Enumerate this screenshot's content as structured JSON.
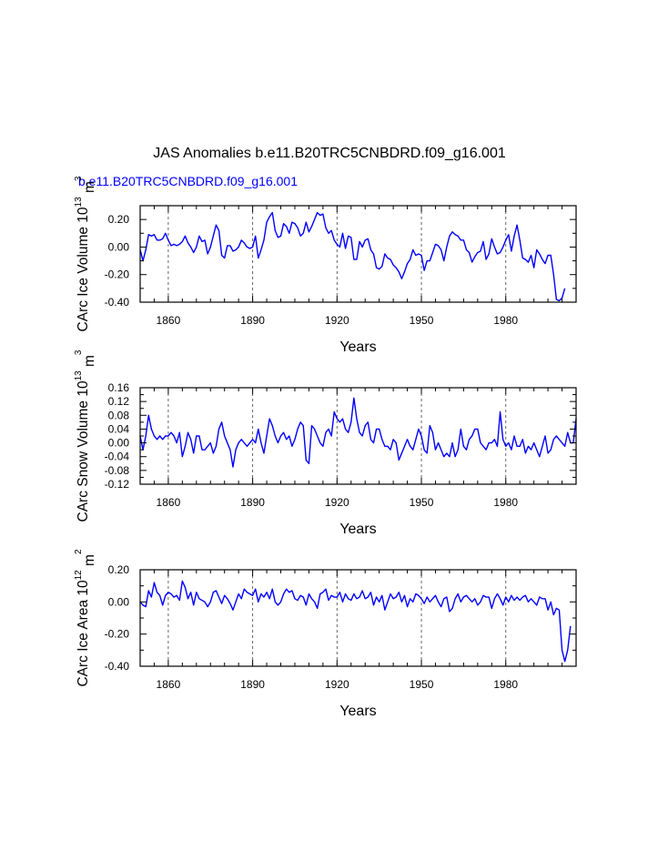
{
  "title": "JAS Anomalies b.e11.B20TRC5CNBDRD.f09_g16.001",
  "legend_label": "b.e11.B20TRC5CNBDRD.f09_g16.001",
  "colors": {
    "series": "#0000ff",
    "axis": "#000000",
    "grid": "#555555",
    "legend": "#0000ff"
  },
  "chart_data": [
    {
      "type": "line",
      "title": "",
      "xlabel": "Years",
      "ylabel": "CArc Ice Volume 10",
      "ylabel_exp1": "13",
      "ylabel_mid": " m",
      "ylabel_exp2": "3",
      "xlim": [
        1850,
        2005
      ],
      "ylim": [
        -0.4,
        0.3
      ],
      "xticks": [
        1860,
        1890,
        1920,
        1950,
        1980
      ],
      "yticks": [
        -0.4,
        -0.2,
        0.0,
        0.2
      ],
      "ytick_labels": [
        "-0.40",
        "-0.20",
        "0.00",
        "0.20"
      ],
      "grid_x": [
        1860,
        1890,
        1920,
        1950,
        1980
      ],
      "x_start": 1850,
      "series": [
        {
          "name": "b.e11.B20TRC5CNBDRD.f09_g16.001",
          "values": [
            -0.02,
            -0.1,
            -0.02,
            0.09,
            0.08,
            0.09,
            0.05,
            0.05,
            0.06,
            0.1,
            0.05,
            0.01,
            0.02,
            0.01,
            0.02,
            0.04,
            0.08,
            0.03,
            0.0,
            -0.04,
            0.0,
            0.08,
            0.04,
            0.05,
            -0.05,
            0.0,
            0.08,
            0.16,
            0.12,
            -0.06,
            -0.08,
            0.01,
            0.01,
            -0.03,
            -0.02,
            0.0,
            0.05,
            0.03,
            0.0,
            -0.01,
            0.0,
            0.08,
            -0.08,
            -0.02,
            0.05,
            0.18,
            0.22,
            0.25,
            0.12,
            0.07,
            0.08,
            0.17,
            0.15,
            0.1,
            0.18,
            0.17,
            0.14,
            0.08,
            0.1,
            0.18,
            0.11,
            0.15,
            0.2,
            0.25,
            0.23,
            0.24,
            0.14,
            0.1,
            0.12,
            0.05,
            0.02,
            0.0,
            0.1,
            -0.01,
            0.08,
            0.07,
            -0.09,
            -0.09,
            0.04,
            0.0,
            0.05,
            0.06,
            -0.02,
            -0.05,
            -0.15,
            -0.16,
            -0.14,
            -0.05,
            -0.08,
            -0.09,
            -0.13,
            -0.15,
            -0.18,
            -0.23,
            -0.18,
            -0.12,
            -0.09,
            -0.02,
            -0.06,
            -0.05,
            -0.06,
            -0.17,
            -0.1,
            -0.1,
            -0.04,
            0.02,
            0.01,
            -0.02,
            -0.1,
            0.0,
            0.08,
            0.11,
            0.09,
            0.08,
            0.05,
            0.05,
            -0.02,
            -0.04,
            -0.11,
            -0.07,
            -0.04,
            -0.03,
            0.04,
            -0.09,
            -0.05,
            0.06,
            0.0,
            -0.05,
            -0.04,
            0.0,
            0.05,
            0.09,
            -0.03,
            0.08,
            0.16,
            0.05,
            -0.08,
            -0.09,
            -0.11,
            -0.06,
            -0.15,
            -0.02,
            -0.05,
            -0.09,
            -0.12,
            -0.06,
            -0.06,
            -0.2,
            -0.38,
            -0.39,
            -0.37,
            -0.3
          ]
        }
      ]
    },
    {
      "type": "line",
      "title": "",
      "xlabel": "Years",
      "ylabel": "CArc Snow Volume 10",
      "ylabel_exp1": "13",
      "ylabel_mid": " m",
      "ylabel_exp2": "3",
      "xlim": [
        1850,
        2005
      ],
      "ylim": [
        -0.12,
        0.16
      ],
      "xticks": [
        1860,
        1890,
        1920,
        1950,
        1980
      ],
      "yticks": [
        -0.12,
        -0.08,
        -0.04,
        0.0,
        0.04,
        0.08,
        0.12,
        0.16
      ],
      "ytick_labels": [
        "-0.12",
        "-0.08",
        "-0.04",
        "0.00",
        "0.04",
        "0.08",
        "0.12",
        "0.16"
      ],
      "grid_x": [
        1860,
        1890,
        1920,
        1950,
        1980
      ],
      "x_start": 1850,
      "series": [
        {
          "name": "b.e11.B20TRC5CNBDRD.f09_g16.001",
          "values": [
            0.02,
            -0.02,
            0.02,
            0.08,
            0.04,
            0.02,
            0.01,
            0.02,
            0.01,
            0.02,
            0.02,
            0.03,
            0.02,
            0.0,
            0.03,
            -0.04,
            -0.01,
            0.03,
            0.01,
            -0.03,
            0.02,
            0.02,
            -0.02,
            -0.02,
            -0.01,
            0.0,
            -0.03,
            -0.01,
            0.04,
            0.06,
            0.02,
            0.0,
            -0.02,
            -0.07,
            -0.02,
            0.0,
            0.01,
            0.0,
            -0.01,
            0.0,
            0.01,
            0.0,
            0.04,
            0.0,
            -0.03,
            0.02,
            0.07,
            0.05,
            0.02,
            0.0,
            0.02,
            0.03,
            0.01,
            0.02,
            -0.01,
            0.01,
            0.04,
            0.06,
            0.05,
            -0.05,
            -0.06,
            0.05,
            0.04,
            0.02,
            0.0,
            -0.01,
            0.03,
            0.04,
            0.02,
            0.09,
            0.07,
            0.06,
            0.07,
            0.04,
            0.03,
            0.06,
            0.13,
            0.07,
            0.03,
            0.02,
            0.05,
            0.06,
            0.01,
            0.0,
            0.04,
            0.04,
            0.01,
            -0.01,
            -0.01,
            -0.02,
            0.01,
            0.0,
            -0.05,
            -0.03,
            -0.01,
            0.01,
            -0.01,
            -0.02,
            0.01,
            0.04,
            0.02,
            -0.02,
            -0.03,
            0.05,
            0.03,
            -0.02,
            0.0,
            -0.02,
            -0.04,
            -0.03,
            -0.04,
            0.0,
            -0.04,
            -0.02,
            0.04,
            -0.01,
            -0.02,
            0.01,
            0.02,
            0.04,
            0.04,
            0.0,
            -0.01,
            -0.02,
            0.0,
            0.0,
            0.01,
            -0.01,
            0.09,
            0.01,
            -0.01,
            0.0,
            -0.02,
            0.02,
            -0.01,
            -0.01,
            0.01,
            -0.03,
            -0.01,
            -0.02,
            0.0,
            -0.02,
            -0.04,
            -0.01,
            0.02,
            -0.03,
            -0.02,
            0.01,
            0.02,
            0.01,
            0.0,
            -0.01,
            0.03,
            0.0,
            0.0,
            0.07
          ]
        }
      ]
    },
    {
      "type": "line",
      "title": "",
      "xlabel": "Years",
      "ylabel": "CArc Ice Area 10",
      "ylabel_exp1": "12",
      "ylabel_mid": " m",
      "ylabel_exp2": "2",
      "xlim": [
        1850,
        2005
      ],
      "ylim": [
        -0.4,
        0.2
      ],
      "xticks": [
        1860,
        1890,
        1920,
        1950,
        1980
      ],
      "yticks": [
        -0.4,
        -0.2,
        0.0,
        0.2
      ],
      "ytick_labels": [
        "-0.40",
        "-0.20",
        "0.00",
        "0.20"
      ],
      "grid_x": [
        1860,
        1890,
        1920,
        1950,
        1980
      ],
      "x_start": 1850,
      "series": [
        {
          "name": "b.e11.B20TRC5CNBDRD.f09_g16.001",
          "values": [
            0.0,
            -0.02,
            -0.03,
            0.07,
            0.03,
            0.12,
            0.06,
            0.04,
            -0.02,
            0.04,
            0.06,
            0.05,
            0.03,
            0.04,
            0.01,
            0.13,
            0.09,
            0.02,
            0.06,
            -0.02,
            0.06,
            0.02,
            0.01,
            0.0,
            -0.03,
            0.0,
            0.06,
            0.07,
            0.03,
            -0.01,
            0.04,
            0.02,
            -0.01,
            -0.05,
            0.0,
            0.05,
            0.02,
            0.08,
            0.06,
            0.05,
            0.04,
            0.08,
            0.0,
            0.05,
            0.03,
            0.06,
            0.02,
            0.08,
            0.0,
            -0.02,
            0.0,
            0.05,
            0.08,
            0.06,
            0.07,
            0.02,
            0.01,
            0.04,
            0.03,
            -0.02,
            0.05,
            0.02,
            0.0,
            -0.04,
            0.05,
            0.06,
            0.08,
            0.01,
            0.04,
            0.03,
            0.03,
            0.06,
            0.0,
            0.05,
            0.02,
            0.01,
            0.05,
            0.02,
            0.03,
            0.07,
            0.02,
            0.03,
            0.06,
            -0.02,
            0.03,
            0.0,
            0.04,
            -0.05,
            0.0,
            0.05,
            0.02,
            0.03,
            0.06,
            0.0,
            0.04,
            -0.03,
            0.02,
            0.0,
            0.05,
            0.04,
            0.02,
            -0.01,
            0.03,
            0.0,
            0.02,
            0.04,
            0.0,
            -0.03,
            0.02,
            0.03,
            -0.06,
            -0.04,
            0.02,
            0.05,
            0.0,
            0.03,
            0.04,
            0.02,
            0.0,
            0.02,
            -0.02,
            0.0,
            0.04,
            0.03,
            0.03,
            -0.04,
            0.02,
            0.05,
            0.02,
            -0.02,
            0.03,
            0.0,
            0.04,
            0.01,
            0.03,
            0.01,
            0.03,
            0.04,
            0.0,
            0.02,
            0.0,
            -0.02,
            0.03,
            0.02,
            0.02,
            -0.05,
            0.0,
            -0.08,
            -0.04,
            -0.05,
            -0.3,
            -0.37,
            -0.3,
            -0.15
          ]
        }
      ]
    }
  ]
}
